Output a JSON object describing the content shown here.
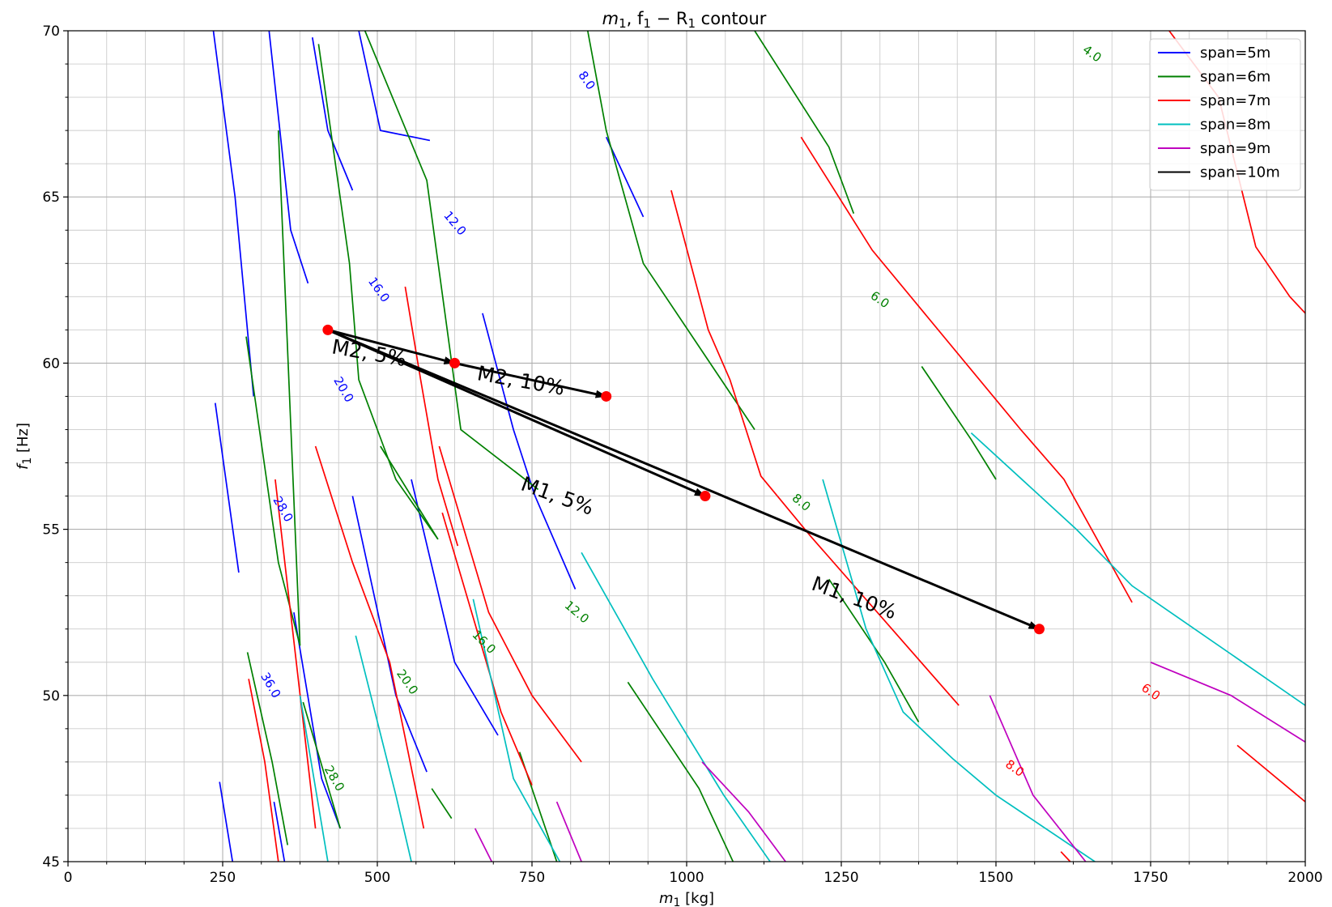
{
  "chart_data": {
    "type": "line",
    "title_parts": {
      "pre": "m",
      "sub1": "1",
      "mid": ", f",
      "sub2": "1",
      "mid2": " − R",
      "sub3": "1",
      "post": " contour"
    },
    "xlabel_parts": {
      "pre": "m",
      "sub": "1",
      "post": " [kg]"
    },
    "ylabel_parts": {
      "pre": "f",
      "sub": "1",
      "post": " [Hz]"
    },
    "xlim": [
      0,
      2000
    ],
    "ylim": [
      45,
      70
    ],
    "xticks": [
      0,
      250,
      500,
      750,
      1000,
      1250,
      1500,
      1750,
      2000
    ],
    "yticks": [
      45,
      50,
      55,
      60,
      65,
      70
    ],
    "xtick_labels": [
      "0",
      "250",
      "500",
      "750",
      "1000",
      "1250",
      "1500",
      "1750",
      "2000"
    ],
    "ytick_labels": [
      "45",
      "50",
      "55",
      "60",
      "65",
      "70"
    ],
    "grid": true,
    "legend_position": "top-right",
    "series": [
      {
        "name": "span=5m",
        "color": "#0000ff",
        "segments": [
          [
            [
              235,
              70
            ],
            [
              270,
              65
            ],
            [
              300,
              59
            ]
          ],
          [
            [
              238,
              58.8
            ],
            [
              276,
              53.7
            ]
          ],
          [
            [
              245,
              47.4
            ],
            [
              266,
              45
            ]
          ],
          [
            [
              325,
              70
            ],
            [
              360,
              64
            ],
            [
              388,
              62.4
            ]
          ],
          [
            [
              395,
              69.8
            ],
            [
              420,
              67
            ],
            [
              460,
              65.2
            ]
          ],
          [
            [
              365,
              52.5
            ],
            [
              410,
              47.5
            ],
            [
              440,
              46
            ]
          ],
          [
            [
              333,
              46.8
            ],
            [
              350,
              45
            ]
          ],
          [
            [
              470,
              70
            ],
            [
              505,
              67
            ],
            [
              585,
              66.7
            ]
          ],
          [
            [
              460,
              56
            ],
            [
              530,
              50
            ],
            [
              580,
              47.7
            ]
          ],
          [
            [
              555,
              56.5
            ],
            [
              625,
              51
            ],
            [
              695,
              48.8
            ]
          ],
          [
            [
              670,
              61.5
            ],
            [
              720,
              58
            ],
            [
              755,
              56
            ],
            [
              820,
              53.2
            ]
          ],
          [
            [
              870,
              66.8
            ],
            [
              930,
              64.4
            ]
          ]
        ]
      },
      {
        "name": "span=6m",
        "color": "#008000",
        "segments": [
          [
            [
              288,
              60.8
            ],
            [
              340,
              54
            ],
            [
              375,
              51.5
            ]
          ],
          [
            [
              290,
              51.3
            ],
            [
              330,
              48
            ],
            [
              355,
              45.5
            ]
          ],
          [
            [
              340,
              67
            ],
            [
              375,
              51.5
            ]
          ],
          [
            [
              405,
              69.6
            ],
            [
              455,
              63
            ],
            [
              470,
              59.5
            ],
            [
              530,
              56.5
            ],
            [
              598,
              54.7
            ]
          ],
          [
            [
              505,
              57.5
            ],
            [
              598,
              54.7
            ]
          ],
          [
            [
              480,
              70
            ],
            [
              580,
              65.5
            ],
            [
              635,
              58
            ],
            [
              760,
              56.2
            ]
          ],
          [
            [
              380,
              49.8
            ],
            [
              440,
              46
            ]
          ],
          [
            [
              588,
              47.2
            ],
            [
              620,
              46.3
            ]
          ],
          [
            [
              730,
              48.3
            ],
            [
              790,
              45
            ]
          ],
          [
            [
              840,
              70
            ],
            [
              870,
              67
            ],
            [
              930,
              63
            ],
            [
              1110,
              58
            ]
          ],
          [
            [
              1110,
              70
            ],
            [
              1230,
              66.5
            ],
            [
              1270,
              64.5
            ]
          ],
          [
            [
              1380,
              59.9
            ],
            [
              1460,
              57.7
            ],
            [
              1500,
              56.5
            ]
          ],
          [
            [
              1230,
              53.5
            ],
            [
              1320,
              51
            ],
            [
              1375,
              49.2
            ]
          ],
          [
            [
              905,
              50.4
            ],
            [
              1020,
              47.2
            ],
            [
              1075,
              45
            ]
          ]
        ]
      },
      {
        "name": "span=7m",
        "color": "#ff0000",
        "segments": [
          [
            [
              335,
              56.5
            ],
            [
              400,
              46
            ]
          ],
          [
            [
              292,
              50.5
            ],
            [
              318,
              48
            ],
            [
              340,
              45
            ]
          ],
          [
            [
              545,
              62.3
            ],
            [
              570,
              59.5
            ],
            [
              598,
              56.5
            ],
            [
              630,
              54.5
            ]
          ],
          [
            [
              400,
              57.5
            ],
            [
              460,
              54
            ],
            [
              520,
              51
            ],
            [
              575,
              46
            ]
          ],
          [
            [
              600,
              57.5
            ],
            [
              680,
              52.5
            ],
            [
              750,
              50
            ],
            [
              830,
              48
            ]
          ],
          [
            [
              605,
              55.5
            ],
            [
              700,
              49.5
            ],
            [
              750,
              47.3
            ]
          ],
          [
            [
              975,
              65.2
            ],
            [
              1035,
              61
            ],
            [
              1070,
              59.5
            ],
            [
              1120,
              56.6
            ],
            [
              1200,
              54.8
            ],
            [
              1440,
              49.7
            ]
          ],
          [
            [
              1185,
              66.8
            ],
            [
              1300,
              63.4
            ],
            [
              1540,
              58
            ],
            [
              1610,
              56.5
            ],
            [
              1720,
              52.8
            ]
          ],
          [
            [
              1780,
              70
            ],
            [
              1860,
              68
            ],
            [
              1920,
              63.5
            ],
            [
              1975,
              62
            ],
            [
              2000,
              61.5
            ]
          ],
          [
            [
              1890,
              48.5
            ],
            [
              2000,
              46.8
            ]
          ],
          [
            [
              1605,
              45.3
            ],
            [
              1620,
              45
            ]
          ]
        ]
      },
      {
        "name": "span=8m",
        "color": "#00bfbf",
        "segments": [
          [
            [
              375,
              50
            ],
            [
              420,
              45
            ]
          ],
          [
            [
              465,
              51.8
            ],
            [
              530,
              47
            ],
            [
              555,
              45
            ]
          ],
          [
            [
              655,
              52.9
            ],
            [
              720,
              47.5
            ],
            [
              795,
              45
            ]
          ],
          [
            [
              830,
              54.3
            ],
            [
              945,
              50.5
            ],
            [
              1060,
              47
            ],
            [
              1135,
              45
            ]
          ],
          [
            [
              1220,
              56.5
            ],
            [
              1290,
              52
            ],
            [
              1350,
              49.5
            ],
            [
              1430,
              48.1
            ],
            [
              1500,
              47
            ],
            [
              1660,
              45
            ]
          ],
          [
            [
              1460,
              57.9
            ],
            [
              1630,
              55
            ],
            [
              1720,
              53.3
            ],
            [
              2000,
              49.7
            ]
          ]
        ]
      },
      {
        "name": "span=9m",
        "color": "#bf00bf",
        "segments": [
          [
            [
              658,
              46
            ],
            [
              685,
              45
            ]
          ],
          [
            [
              790,
              46.8
            ],
            [
              830,
              45
            ]
          ],
          [
            [
              1025,
              48
            ],
            [
              1100,
              46.5
            ],
            [
              1160,
              45
            ]
          ],
          [
            [
              1490,
              50
            ],
            [
              1560,
              47
            ],
            [
              1645,
              45
            ]
          ],
          [
            [
              1750,
              51
            ],
            [
              1880,
              50
            ],
            [
              2000,
              48.6
            ]
          ]
        ]
      },
      {
        "name": "span=10m",
        "color": "#000000",
        "segments": []
      }
    ],
    "contour_labels": [
      {
        "text": "8.0",
        "x": 838,
        "y": 68.5,
        "angle": 55,
        "color": "#0000ff"
      },
      {
        "text": "12.0",
        "x": 625,
        "y": 64.2,
        "angle": 50,
        "color": "#0000ff"
      },
      {
        "text": "16.0",
        "x": 502,
        "y": 62.2,
        "angle": 55,
        "color": "#0000ff"
      },
      {
        "text": "20.0",
        "x": 445,
        "y": 59.2,
        "angle": 60,
        "color": "#0000ff"
      },
      {
        "text": "28.0",
        "x": 347,
        "y": 55.6,
        "angle": 60,
        "color": "#0000ff"
      },
      {
        "text": "36.0",
        "x": 327,
        "y": 50.3,
        "angle": 60,
        "color": "#0000ff"
      },
      {
        "text": "4.0",
        "x": 1655,
        "y": 69.3,
        "angle": 35,
        "color": "#008000"
      },
      {
        "text": "6.0",
        "x": 1312,
        "y": 61.9,
        "angle": 35,
        "color": "#008000"
      },
      {
        "text": "8.0",
        "x": 1185,
        "y": 55.8,
        "angle": 40,
        "color": "#008000"
      },
      {
        "text": "12.0",
        "x": 822,
        "y": 52.5,
        "angle": 40,
        "color": "#008000"
      },
      {
        "text": "16.0",
        "x": 672,
        "y": 51.6,
        "angle": 45,
        "color": "#008000"
      },
      {
        "text": "20.0",
        "x": 548,
        "y": 50.4,
        "angle": 55,
        "color": "#008000"
      },
      {
        "text": "28.0",
        "x": 430,
        "y": 47.5,
        "angle": 60,
        "color": "#008000"
      },
      {
        "text": "6.0",
        "x": 1750,
        "y": 50.1,
        "angle": 35,
        "color": "#ff0000"
      },
      {
        "text": "8.0",
        "x": 1530,
        "y": 47.8,
        "angle": 35,
        "color": "#ff0000"
      }
    ],
    "annotations": [
      {
        "text": "M2, 5%",
        "from": [
          420,
          61
        ],
        "to": [
          625,
          60
        ],
        "text_x": 425,
        "text_y": 60.3,
        "angle": 10
      },
      {
        "text": "M2, 10%",
        "from": [
          625,
          60
        ],
        "to": [
          870,
          59
        ],
        "text_x": 660,
        "text_y": 59.5,
        "angle": 10
      },
      {
        "text": "M1, 5%",
        "from": [
          420,
          61
        ],
        "to": [
          1030,
          56
        ],
        "text_x": 730,
        "text_y": 56.2,
        "angle": 20
      },
      {
        "text": "M1, 10%",
        "from": [
          420,
          61
        ],
        "to": [
          1570,
          52
        ],
        "text_x": 1200,
        "text_y": 53.2,
        "angle": 20
      }
    ],
    "points": [
      {
        "x": 420,
        "y": 61,
        "color": "#ff0000"
      },
      {
        "x": 625,
        "y": 60,
        "color": "#ff0000"
      },
      {
        "x": 870,
        "y": 59,
        "color": "#ff0000"
      },
      {
        "x": 1030,
        "y": 56,
        "color": "#ff0000"
      },
      {
        "x": 1570,
        "y": 52,
        "color": "#ff0000"
      }
    ]
  }
}
